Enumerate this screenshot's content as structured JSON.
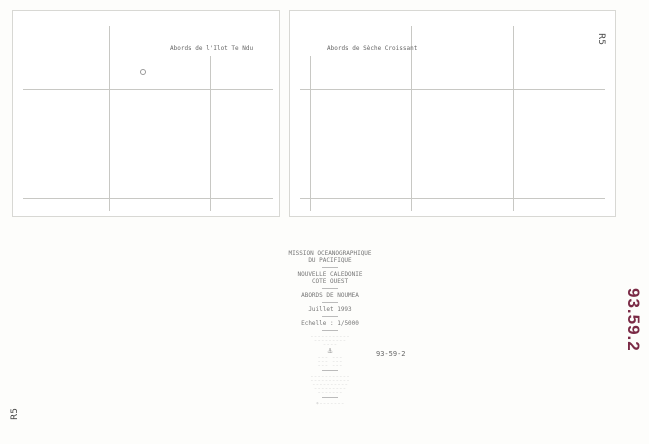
{
  "maps": [
    {
      "title": "Abords de l'Ilot Te Ndu"
    },
    {
      "title": "Abords de Sèche Croissant"
    }
  ],
  "cartouche": {
    "line1": "MISSION OCEANOGRAPHIQUE",
    "line2": "DU PACIFIQUE",
    "line3": "NOUVELLE CALEDONIE",
    "line4": "COTE OUEST",
    "line5": "ABORDS DE NOUMEA",
    "date": "Juillet 1993",
    "scale": "Echelle : 1/5000"
  },
  "sheet_number": "93-59-2",
  "stamp": {
    "text": "93.59.2",
    "color": "#7a2a45"
  },
  "sheet_code": "R5"
}
